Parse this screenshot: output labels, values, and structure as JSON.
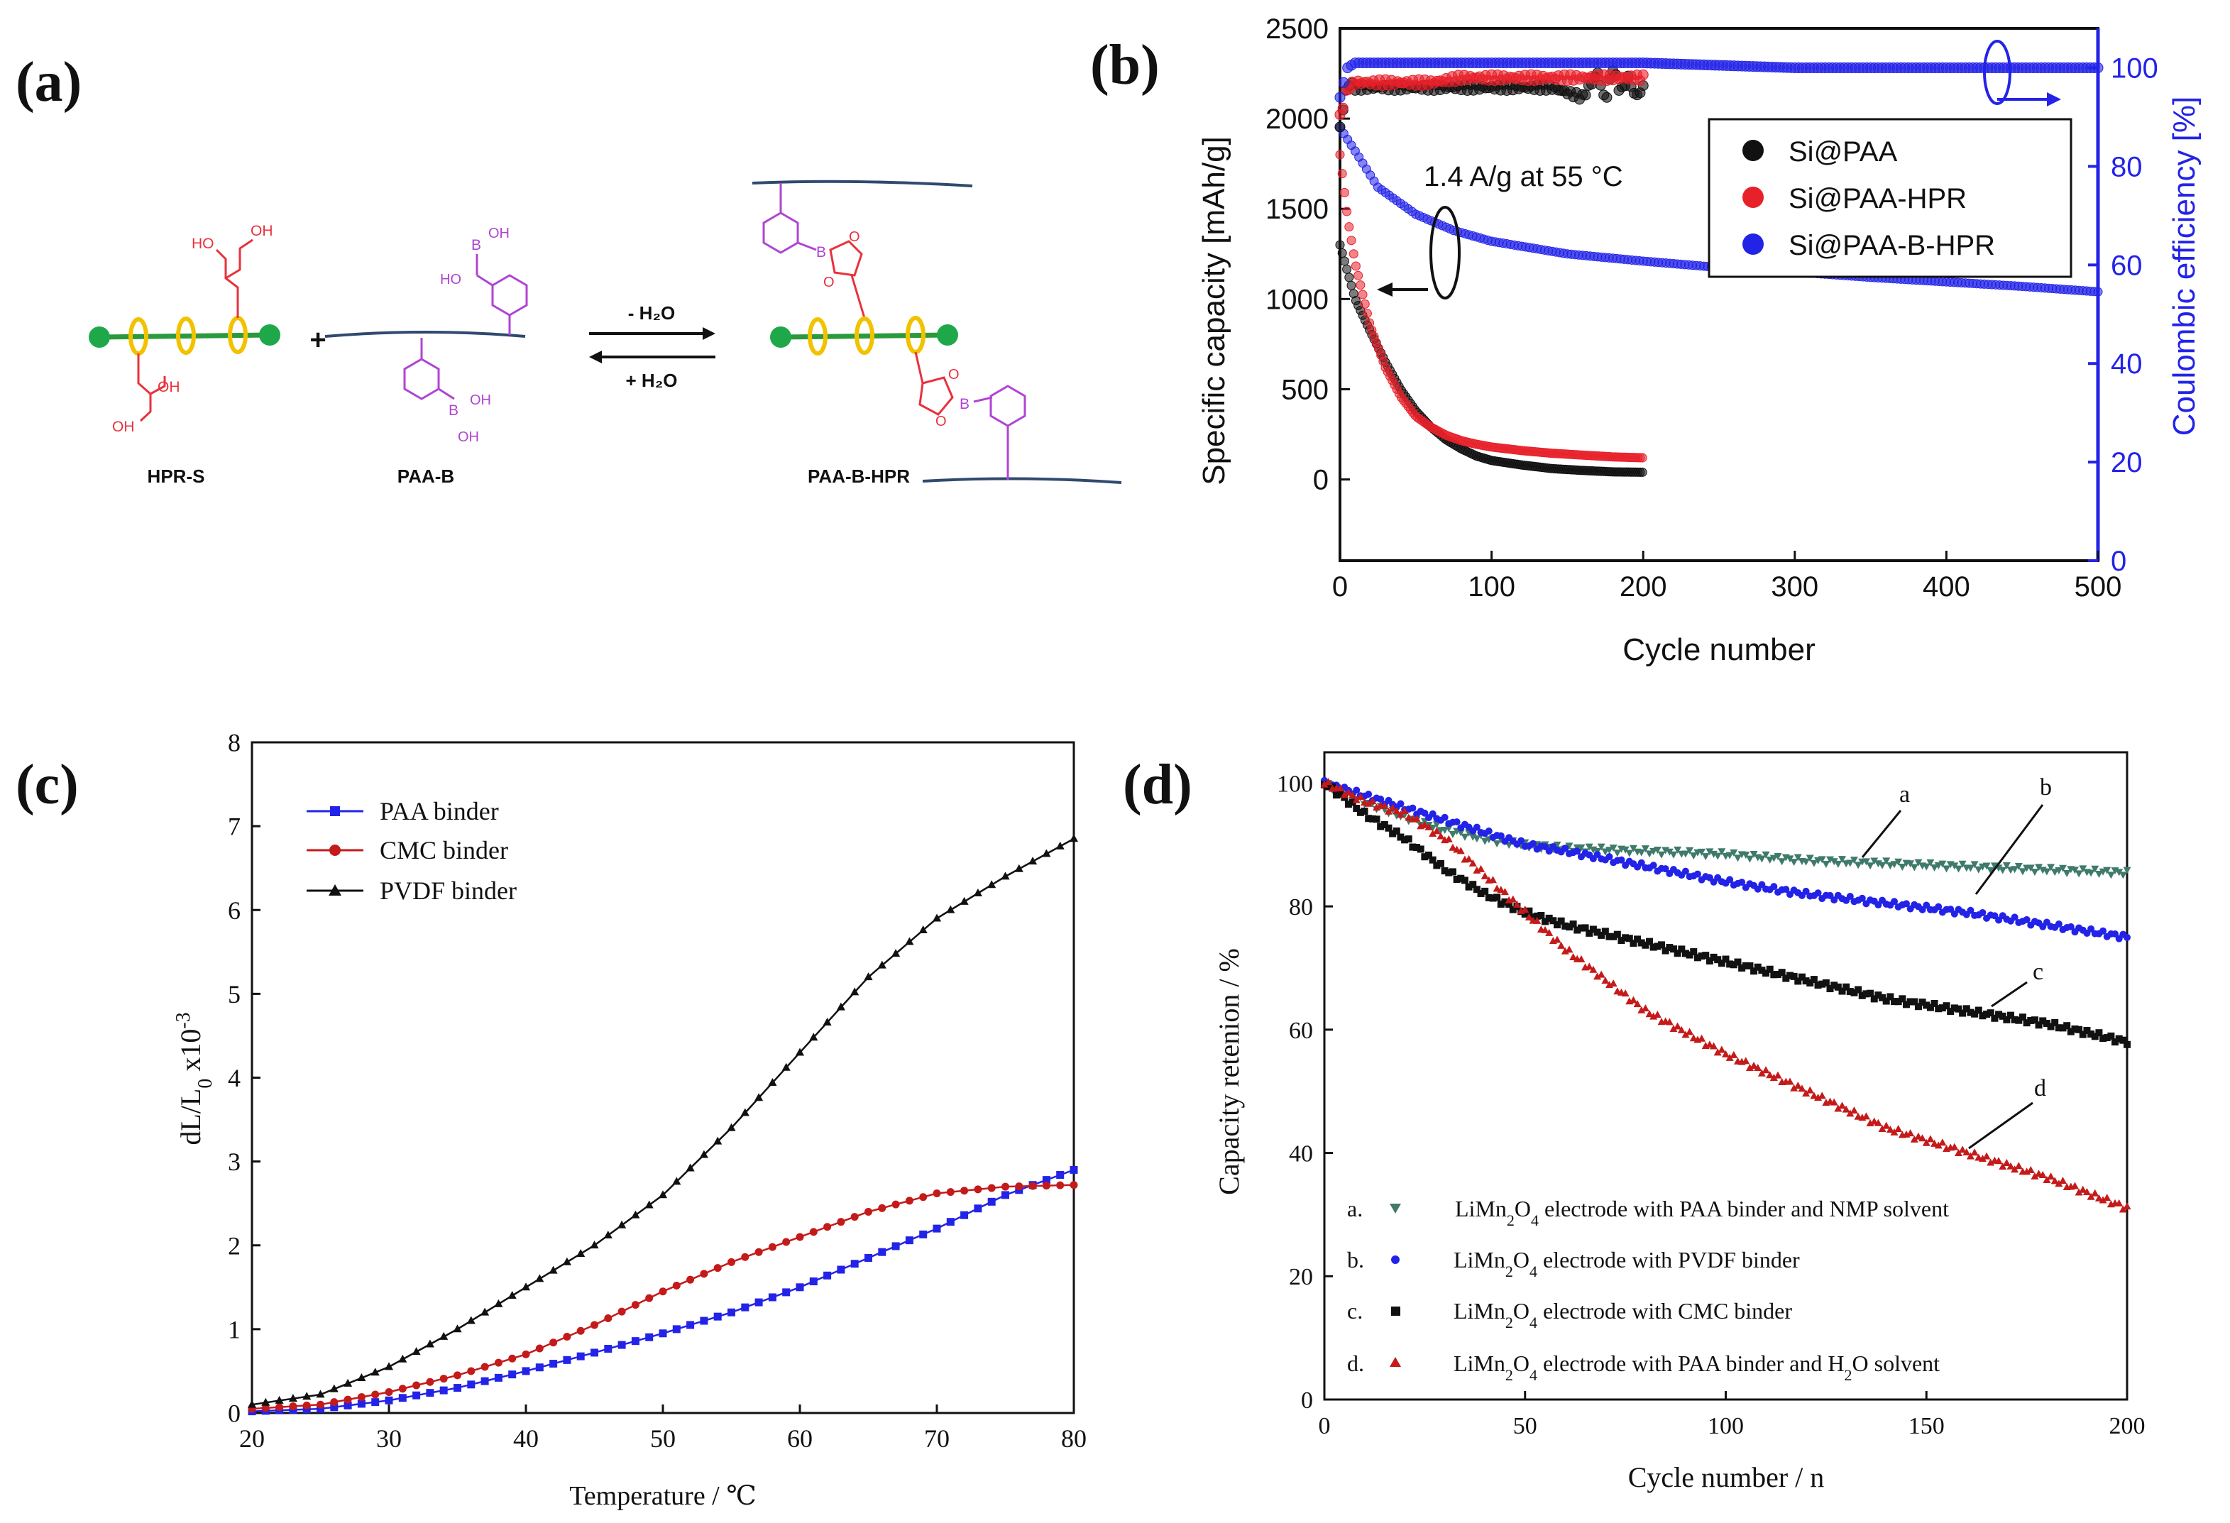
{
  "panels": {
    "a": {
      "letter": "(a)"
    },
    "b": {
      "letter": "(b)"
    },
    "c": {
      "letter": "(c)"
    },
    "d": {
      "letter": "(d)"
    }
  },
  "scheme": {
    "reactant1": "HPR-S",
    "reactant2": "PAA-B",
    "product": "PAA-B-HPR",
    "plus": "+",
    "forward": "- H₂O",
    "reverse": "+ H₂O",
    "group_oh": "OH",
    "group_ho": "HO",
    "atom_b": "B",
    "atom_o": "O",
    "colors": {
      "chain": "#2a9a3c",
      "ring": "#f2c200",
      "bead": "#1fa84a",
      "polymer": "#2f4a6e",
      "boronic": "#b044d4",
      "diol": "#e8323c"
    }
  },
  "chart_data": [
    {
      "id": "b",
      "type": "scatter",
      "xlabel": "Cycle number",
      "ylabel": "Specific capacity [mAh/g]",
      "y2label": "Coulombic efficiency [%]",
      "xlim": [
        0,
        500
      ],
      "ylim": [
        -450,
        2500
      ],
      "y2lim": [
        0,
        108
      ],
      "xticks": [
        0,
        100,
        200,
        300,
        400,
        500
      ],
      "yticks": [
        0,
        500,
        1000,
        1500,
        2000,
        2500
      ],
      "y2ticks": [
        0,
        20,
        40,
        60,
        80,
        100
      ],
      "annotation": "1.4 A/g at 55 °C",
      "legend": [
        "Si@PAA",
        "Si@PAA-HPR",
        "Si@PAA-B-HPR"
      ],
      "colors": [
        "#111111",
        "#e8202a",
        "#2323e8"
      ],
      "axis2_color": "#2323e8",
      "capacity_series": [
        {
          "name": "Si@PAA",
          "x": [
            0,
            5,
            10,
            20,
            30,
            40,
            50,
            60,
            70,
            80,
            90,
            100,
            120,
            140,
            160,
            180,
            200
          ],
          "y": [
            1300,
            1150,
            1000,
            820,
            650,
            500,
            380,
            290,
            220,
            170,
            130,
            105,
            80,
            60,
            50,
            42,
            40
          ]
        },
        {
          "name": "Si@PAA-HPR",
          "x": [
            0,
            5,
            10,
            20,
            30,
            40,
            50,
            60,
            70,
            80,
            90,
            100,
            120,
            140,
            160,
            180,
            200
          ],
          "y": [
            1800,
            1450,
            1200,
            850,
            620,
            460,
            350,
            290,
            245,
            215,
            195,
            180,
            160,
            145,
            135,
            125,
            120
          ]
        },
        {
          "name": "Si@PAA-B-HPR",
          "x": [
            0,
            10,
            25,
            50,
            75,
            100,
            150,
            200,
            250,
            300,
            350,
            400,
            450,
            500
          ],
          "y": [
            1950,
            1820,
            1620,
            1470,
            1380,
            1320,
            1250,
            1210,
            1175,
            1150,
            1120,
            1095,
            1070,
            1040
          ]
        }
      ],
      "efficiency_series": [
        {
          "name": "Si@PAA",
          "x": [
            0,
            5,
            10,
            20,
            40,
            60,
            80,
            100,
            120,
            140,
            160,
            170,
            175,
            180,
            185,
            190,
            195,
            200
          ],
          "y": [
            88,
            97,
            96,
            96,
            96,
            96,
            96,
            96,
            96,
            96,
            94,
            99,
            93,
            100,
            95,
            98,
            94,
            96
          ]
        },
        {
          "name": "Si@PAA-HPR",
          "x": [
            0,
            5,
            10,
            20,
            40,
            60,
            80,
            100,
            120,
            140,
            160,
            180,
            200
          ],
          "y": [
            90,
            96,
            97,
            97,
            97,
            97,
            98,
            98,
            98,
            98,
            98,
            98,
            98
          ]
        },
        {
          "name": "Si@PAA-B-HPR",
          "x": [
            0,
            5,
            10,
            25,
            50,
            100,
            200,
            300,
            400,
            500
          ],
          "y": [
            94,
            100,
            101,
            101,
            101,
            101,
            101,
            100,
            100,
            100
          ]
        }
      ]
    },
    {
      "id": "c",
      "type": "line",
      "xlabel": "Temperature / ℃",
      "ylabel": "dL/L0 x10-3",
      "ylabel_parts": {
        "main": "dL/L",
        "sub": "0",
        "mult": "  x10",
        "sup": "-3"
      },
      "xlim": [
        20,
        80
      ],
      "ylim": [
        0,
        8
      ],
      "xticks": [
        20,
        30,
        40,
        50,
        60,
        70,
        80
      ],
      "yticks": [
        0,
        1,
        2,
        3,
        4,
        5,
        6,
        7,
        8
      ],
      "legend": [
        "PAA binder",
        "CMC binder",
        "PVDF binder"
      ],
      "colors": [
        "#2323e8",
        "#c41a1a",
        "#111111"
      ],
      "markers": [
        "square",
        "circle",
        "triangle"
      ],
      "series": [
        {
          "name": "PAA binder",
          "x": [
            20,
            25,
            30,
            35,
            40,
            45,
            50,
            55,
            60,
            65,
            70,
            75,
            80
          ],
          "y": [
            0.02,
            0.05,
            0.15,
            0.3,
            0.5,
            0.72,
            0.95,
            1.2,
            1.5,
            1.85,
            2.2,
            2.6,
            2.9
          ]
        },
        {
          "name": "CMC binder",
          "x": [
            20,
            25,
            30,
            35,
            40,
            45,
            50,
            55,
            60,
            65,
            70,
            75,
            80
          ],
          "y": [
            0.05,
            0.1,
            0.25,
            0.45,
            0.7,
            1.05,
            1.45,
            1.8,
            2.1,
            2.4,
            2.62,
            2.7,
            2.72
          ]
        },
        {
          "name": "PVDF binder",
          "x": [
            20,
            25,
            30,
            35,
            40,
            45,
            50,
            55,
            60,
            65,
            70,
            75,
            80
          ],
          "y": [
            0.1,
            0.22,
            0.55,
            1.0,
            1.5,
            2.0,
            2.6,
            3.4,
            4.3,
            5.2,
            5.9,
            6.4,
            6.85
          ]
        }
      ]
    },
    {
      "id": "d",
      "type": "scatter",
      "xlabel": "Cycle number / n",
      "ylabel": "Capacity retenion / %",
      "xlim": [
        0,
        200
      ],
      "ylim": [
        0,
        105
      ],
      "xticks": [
        0,
        50,
        100,
        150,
        200
      ],
      "yticks": [
        0,
        20,
        40,
        60,
        80,
        100
      ],
      "colors": [
        "#3f7a6a",
        "#2323e8",
        "#111111",
        "#c41a1a"
      ],
      "markers": [
        "triangle-down",
        "circle",
        "square",
        "triangle"
      ],
      "curve_labels": [
        "a",
        "b",
        "c",
        "d"
      ],
      "legend": [
        {
          "prefix": "a.",
          "text": "LiMn2O4 electrode with PAA binder and NMP solvent"
        },
        {
          "prefix": "b.",
          "text": "LiMn2O4 electrode with PVDF binder"
        },
        {
          "prefix": "c.",
          "text": "LiMn2O4 electrode with CMC binder"
        },
        {
          "prefix": "d.",
          "text": "LiMn2O4 electrode with PAA binder and H2O solvent"
        }
      ],
      "legend_parts": [
        [
          "LiMn",
          "2",
          "O",
          "4",
          " electrode with PAA binder and NMP solvent"
        ],
        [
          "LiMn",
          "2",
          "O",
          "4",
          " electrode with PVDF binder"
        ],
        [
          "LiMn",
          "2",
          "O",
          "4",
          " electrode with CMC binder"
        ],
        [
          "LiMn",
          "2",
          "O",
          "4",
          " electrode with PAA binder and H",
          "2",
          "O solvent"
        ]
      ],
      "series": [
        {
          "name": "a",
          "x": [
            0,
            10,
            20,
            30,
            40,
            50,
            60,
            80,
            100,
            120,
            140,
            160,
            180,
            200
          ],
          "y": [
            100,
            97,
            94.5,
            92.5,
            91,
            90,
            89.5,
            89,
            88.5,
            87.5,
            87,
            86.5,
            86,
            85.5
          ]
        },
        {
          "name": "b",
          "x": [
            0,
            10,
            20,
            30,
            40,
            50,
            60,
            80,
            100,
            120,
            140,
            160,
            180,
            200
          ],
          "y": [
            100,
            98,
            96,
            94,
            92,
            90,
            89,
            86.5,
            84,
            82,
            80.5,
            79,
            77,
            75
          ]
        },
        {
          "name": "c",
          "x": [
            0,
            10,
            20,
            30,
            40,
            50,
            60,
            80,
            100,
            120,
            140,
            160,
            180,
            200
          ],
          "y": [
            100,
            95,
            91,
            86,
            82,
            79,
            77,
            74,
            71,
            68,
            65,
            63,
            61,
            58
          ]
        },
        {
          "name": "d",
          "x": [
            0,
            10,
            20,
            30,
            40,
            50,
            60,
            70,
            80,
            100,
            120,
            140,
            160,
            180,
            200
          ],
          "y": [
            100,
            97,
            95,
            91,
            85,
            79,
            73,
            68,
            63,
            56,
            50,
            44,
            40,
            36,
            31
          ]
        }
      ]
    }
  ]
}
